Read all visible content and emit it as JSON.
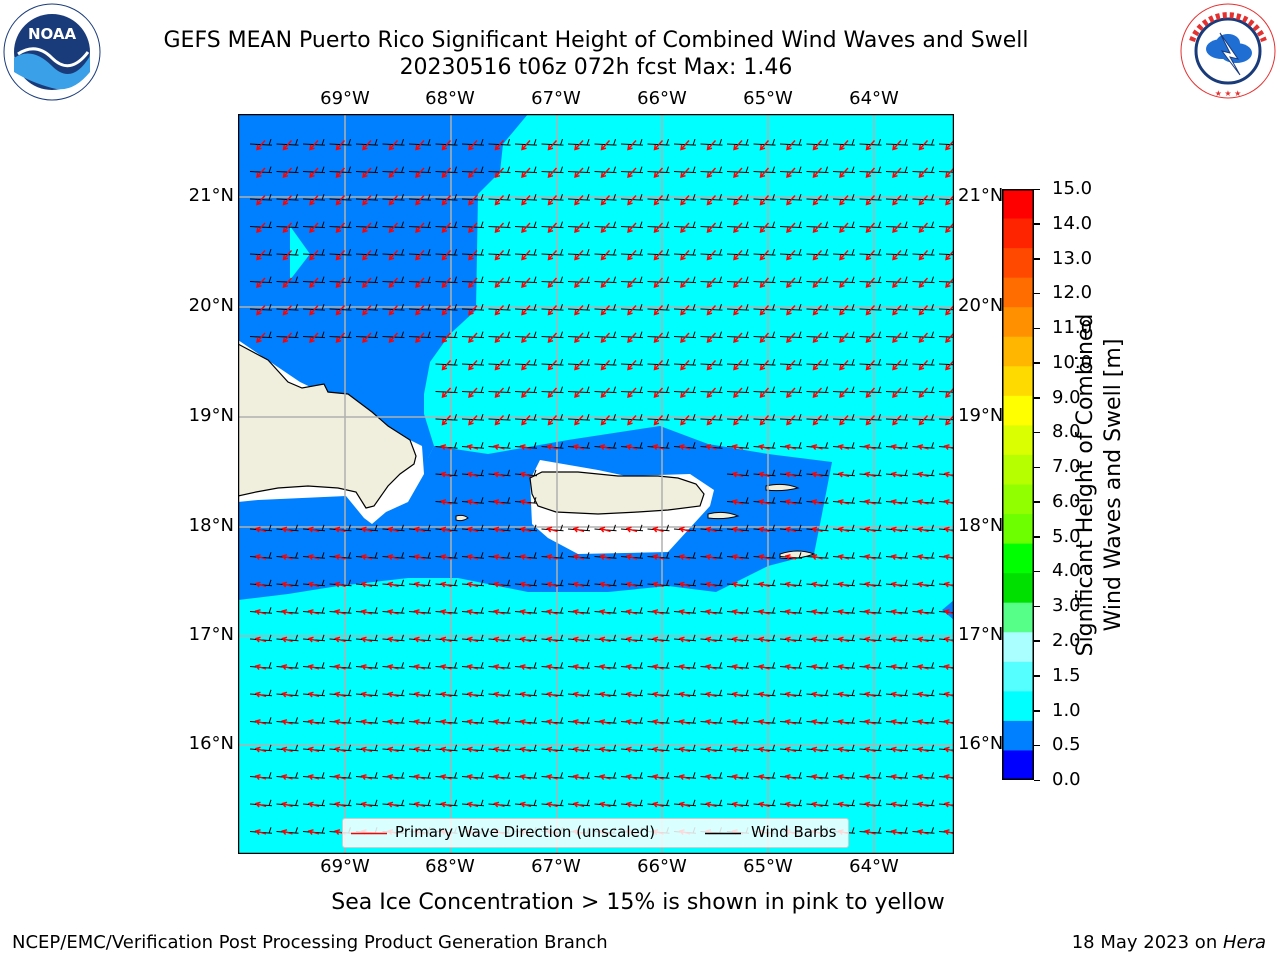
{
  "title": {
    "line1": "GEFS MEAN Puerto Rico Significant Height of Combined Wind Waves and Swell",
    "line2": "20230516 t06z 072h fcst   Max: 1.46"
  },
  "logos": {
    "left": {
      "text": "NOAA",
      "ring_text": "NATIONAL OCEANIC AND ATMOSPHERIC ADMINISTRATION · U.S. DEPARTMENT OF COMMERCE"
    },
    "right": {
      "ring_text": "NATIONAL WEATHER SERVICE"
    }
  },
  "map": {
    "lon_labels": [
      "69°W",
      "68°W",
      "67°W",
      "66°W",
      "65°W",
      "64°W"
    ],
    "lat_labels": [
      "21°N",
      "20°N",
      "19°N",
      "18°N",
      "17°N",
      "16°N"
    ],
    "legend": {
      "wave_direction": "Primary Wave Direction (unscaled)",
      "wind_barbs": "Wind Barbs"
    },
    "colors": {
      "sea_low": "#0080ff",
      "sea_mid": "#00ffff",
      "land": "#f0eedc",
      "white_gap": "#ffffff",
      "wave_arrow": "#ff0000",
      "wind_barb": "#000000"
    }
  },
  "colorbar": {
    "label_line1": "Significant Height of Combined",
    "label_line2": "Wind Waves and Swell [m]",
    "ticks": [
      "15.0",
      "14.0",
      "13.0",
      "12.0",
      "11.0",
      "10.0",
      "9.0",
      "8.0",
      "7.0",
      "6.0",
      "5.0",
      "4.0",
      "3.0",
      "2.0",
      "1.5",
      "1.0",
      "0.5",
      "0.0"
    ],
    "colors_top_to_bottom": [
      "#ff0000",
      "#ff2400",
      "#ff4800",
      "#ff6d00",
      "#ff9100",
      "#ffb600",
      "#ffda00",
      "#ffff00",
      "#daff00",
      "#b6ff00",
      "#91ff00",
      "#6dff00",
      "#00ff00",
      "#00e000",
      "#55ff88",
      "#aaffff",
      "#55ffff",
      "#00ffff",
      "#0080ff",
      "#0000ff"
    ]
  },
  "note": "Sea Ice Concentration > 15% is shown in pink to yellow",
  "footer": {
    "left": "NCEP/EMC/Verification Post Processing Product Generation Branch",
    "right_prefix": "18 May 2023 on ",
    "right_machine": "Hera"
  }
}
